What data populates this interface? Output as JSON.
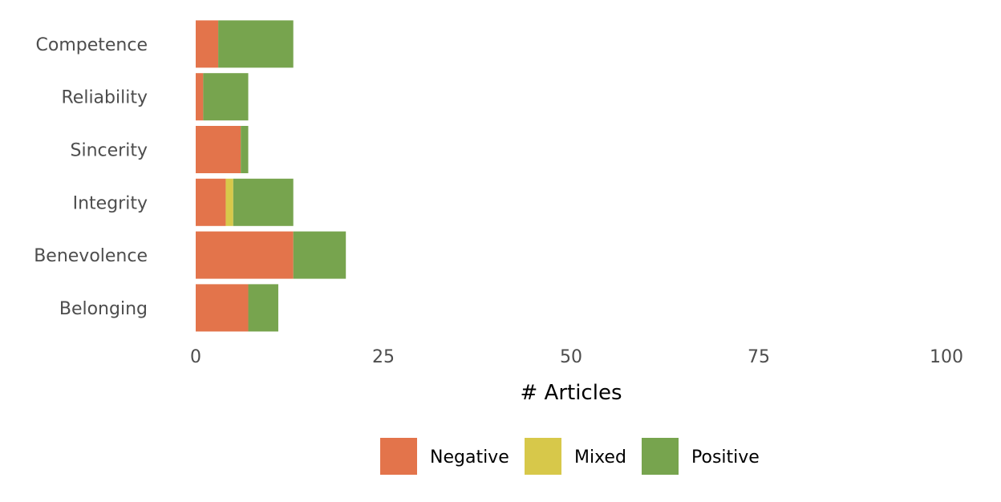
{
  "chart_data": {
    "type": "bar",
    "orientation": "horizontal",
    "stacked": true,
    "categories": [
      "Competence",
      "Reliability",
      "Sincerity",
      "Integrity",
      "Benevolence",
      "Belonging"
    ],
    "series": [
      {
        "name": "Negative",
        "color": "#e3744b",
        "values": [
          3,
          1,
          6,
          4,
          13,
          7
        ]
      },
      {
        "name": "Mixed",
        "color": "#d7c84a",
        "values": [
          0,
          0,
          0,
          1,
          0,
          0
        ]
      },
      {
        "name": "Positive",
        "color": "#77a44e",
        "values": [
          10,
          6,
          1,
          8,
          7,
          4
        ]
      }
    ],
    "xlabel": "# Articles",
    "ylabel": "",
    "xlim": [
      0,
      100
    ],
    "xticks": [
      "0",
      "25",
      "50",
      "75",
      "100"
    ],
    "grid": false,
    "legend_position": "bottom"
  }
}
